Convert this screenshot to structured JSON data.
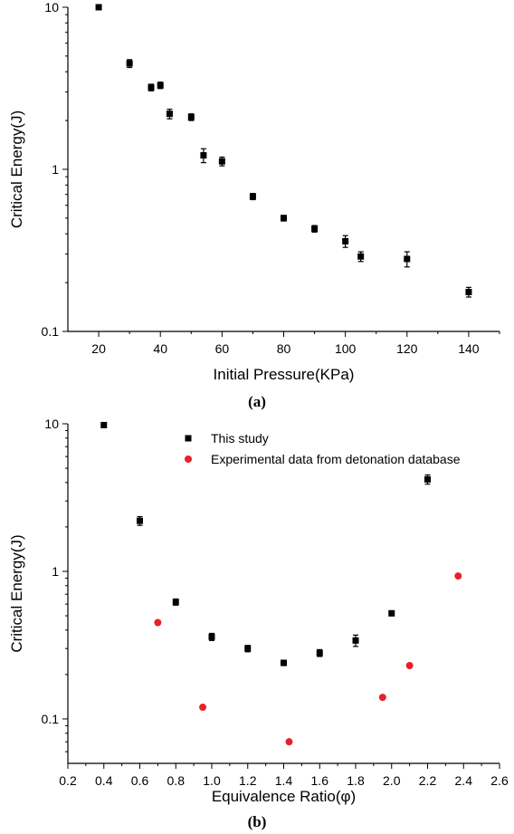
{
  "chart_data": [
    {
      "type": "scatter",
      "panel_label": "(a)",
      "xlabel": "Initial Pressure(KPa)",
      "ylabel": "Critical Energy(J)",
      "xlim": [
        10,
        150
      ],
      "ylim": [
        0.1,
        10
      ],
      "yscale": "log",
      "x_ticks": [
        20,
        40,
        60,
        80,
        100,
        120,
        140
      ],
      "x_tick_labels": [
        "20",
        "40",
        "60",
        "80",
        "100",
        "120",
        "140"
      ],
      "y_ticks": [
        0.1,
        1,
        10
      ],
      "y_tick_labels": [
        "0.1",
        "1",
        "10"
      ],
      "grid": false,
      "series": [
        {
          "marker": "square",
          "color": "#000000",
          "error_bars": true,
          "points": [
            {
              "x": 20,
              "y": 10.0,
              "err": 0.25
            },
            {
              "x": 30,
              "y": 4.5,
              "err": 0.25
            },
            {
              "x": 37,
              "y": 3.2,
              "err": 0.15
            },
            {
              "x": 40,
              "y": 3.3,
              "err": 0.15
            },
            {
              "x": 43,
              "y": 2.2,
              "err": 0.15
            },
            {
              "x": 50,
              "y": 2.1,
              "err": 0.1
            },
            {
              "x": 54,
              "y": 1.22,
              "err": 0.12
            },
            {
              "x": 60,
              "y": 1.12,
              "err": 0.07
            },
            {
              "x": 70,
              "y": 0.68,
              "err": 0.03
            },
            {
              "x": 80,
              "y": 0.5,
              "err": 0.02
            },
            {
              "x": 90,
              "y": 0.43,
              "err": 0.02
            },
            {
              "x": 100,
              "y": 0.36,
              "err": 0.03
            },
            {
              "x": 105,
              "y": 0.29,
              "err": 0.02
            },
            {
              "x": 120,
              "y": 0.28,
              "err": 0.03
            },
            {
              "x": 140,
              "y": 0.175,
              "err": 0.012
            }
          ]
        }
      ]
    },
    {
      "type": "scatter",
      "panel_label": "(b)",
      "xlabel": "Equivalence Ratio(φ)",
      "ylabel": "Critical Energy(J)",
      "xlim": [
        0.2,
        2.6
      ],
      "ylim": [
        0.05,
        10
      ],
      "yscale": "log",
      "x_ticks": [
        0.2,
        0.4,
        0.6,
        0.8,
        1.0,
        1.2,
        1.4,
        1.6,
        1.8,
        2.0,
        2.2,
        2.4,
        2.6
      ],
      "x_tick_labels": [
        "0.2",
        "0.4",
        "0.6",
        "0.8",
        "1.0",
        "1.2",
        "1.4",
        "1.6",
        "1.8",
        "2.0",
        "2.2",
        "2.4",
        "2.6"
      ],
      "y_ticks": [
        0.1,
        1,
        10
      ],
      "y_tick_labels": [
        "0.1",
        "1",
        "10"
      ],
      "grid": false,
      "legend_position": "top-right",
      "series": [
        {
          "name": "This study",
          "marker": "square",
          "color": "#000000",
          "error_bars": true,
          "points": [
            {
              "x": 0.4,
              "y": 9.8,
              "err": 0.3
            },
            {
              "x": 0.6,
              "y": 2.2,
              "err": 0.15
            },
            {
              "x": 0.8,
              "y": 0.62,
              "err": 0.03
            },
            {
              "x": 1.0,
              "y": 0.36,
              "err": 0.02
            },
            {
              "x": 1.2,
              "y": 0.3,
              "err": 0.015
            },
            {
              "x": 1.4,
              "y": 0.24,
              "err": 0.01
            },
            {
              "x": 1.6,
              "y": 0.28,
              "err": 0.015
            },
            {
              "x": 1.8,
              "y": 0.34,
              "err": 0.03
            },
            {
              "x": 2.0,
              "y": 0.52,
              "err": 0.02
            },
            {
              "x": 2.2,
              "y": 4.2,
              "err": 0.3
            }
          ]
        },
        {
          "name": "Experimental data from detonation database",
          "marker": "circle",
          "color": "#e8202a",
          "error_bars": false,
          "points": [
            {
              "x": 0.7,
              "y": 0.45
            },
            {
              "x": 0.95,
              "y": 0.12
            },
            {
              "x": 1.43,
              "y": 0.07
            },
            {
              "x": 1.95,
              "y": 0.14
            },
            {
              "x": 2.1,
              "y": 0.23
            },
            {
              "x": 2.37,
              "y": 0.93
            }
          ]
        }
      ]
    }
  ]
}
